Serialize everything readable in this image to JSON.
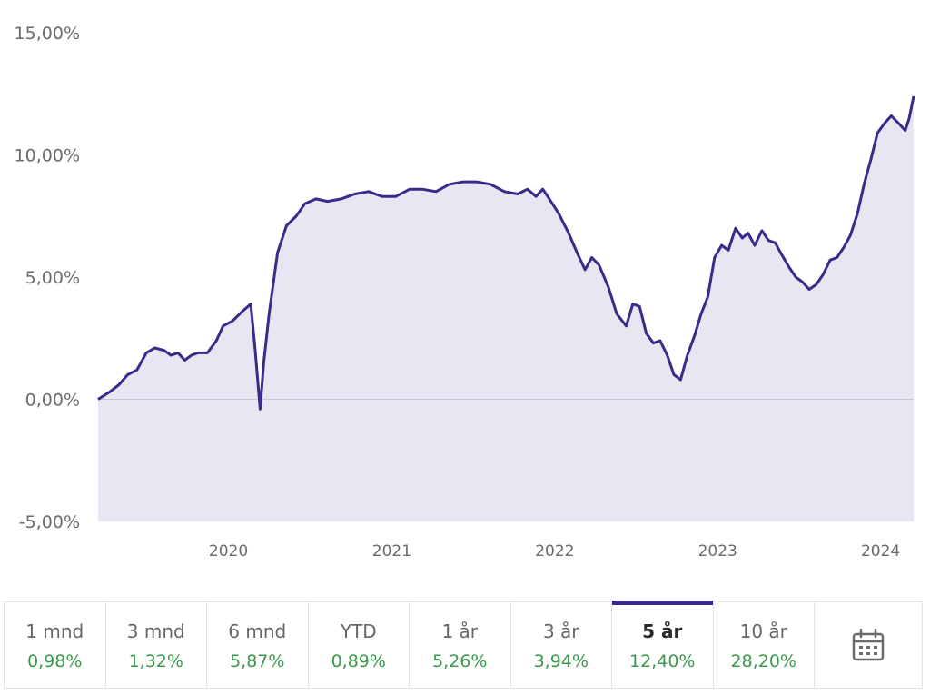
{
  "chart_data": {
    "type": "area",
    "title": "",
    "xlabel": "",
    "ylabel": "",
    "y_unit": "%",
    "ylim": [
      -5,
      15
    ],
    "yticks": [
      {
        "value": 15,
        "label": "15,00%"
      },
      {
        "value": 10,
        "label": "10,00%"
      },
      {
        "value": 5,
        "label": "5,00%"
      },
      {
        "value": 0,
        "label": "0,00%"
      },
      {
        "value": -5,
        "label": "-5,00%"
      }
    ],
    "xlim": [
      "2019-03-15",
      "2024-03-15"
    ],
    "xticks": [
      {
        "value": "2020-01-01",
        "label": "2020"
      },
      {
        "value": "2021-01-01",
        "label": "2021"
      },
      {
        "value": "2022-01-01",
        "label": "2022"
      },
      {
        "value": "2023-01-01",
        "label": "2023"
      },
      {
        "value": "2024-01-01",
        "label": "2024"
      }
    ],
    "grid": false,
    "zero_line": true,
    "line_color": "#3b2a8a",
    "fill_color": "#e9e5f3",
    "series": [
      {
        "name": "",
        "x": [
          "2019-03-15",
          "2019-04-10",
          "2019-05-01",
          "2019-05-20",
          "2019-06-10",
          "2019-07-01",
          "2019-07-20",
          "2019-08-10",
          "2019-08-25",
          "2019-09-10",
          "2019-09-25",
          "2019-10-10",
          "2019-10-25",
          "2019-11-15",
          "2019-12-05",
          "2019-12-20",
          "2020-01-10",
          "2020-02-01",
          "2020-02-20",
          "2020-03-01",
          "2020-03-12",
          "2020-03-20",
          "2020-04-01",
          "2020-04-20",
          "2020-05-10",
          "2020-06-01",
          "2020-06-20",
          "2020-07-15",
          "2020-08-10",
          "2020-09-10",
          "2020-10-10",
          "2020-11-10",
          "2020-12-10",
          "2021-01-10",
          "2021-02-10",
          "2021-03-10",
          "2021-04-10",
          "2021-05-10",
          "2021-06-10",
          "2021-07-10",
          "2021-08-10",
          "2021-09-10",
          "2021-10-10",
          "2021-11-01",
          "2021-11-20",
          "2021-12-05",
          "2021-12-20",
          "2022-01-10",
          "2022-02-01",
          "2022-02-20",
          "2022-03-10",
          "2022-03-25",
          "2022-04-10",
          "2022-05-01",
          "2022-05-20",
          "2022-06-10",
          "2022-06-25",
          "2022-07-10",
          "2022-07-25",
          "2022-08-10",
          "2022-08-25",
          "2022-09-10",
          "2022-09-25",
          "2022-10-10",
          "2022-10-25",
          "2022-11-10",
          "2022-11-25",
          "2022-12-10",
          "2022-12-25",
          "2023-01-10",
          "2023-01-25",
          "2023-02-10",
          "2023-02-25",
          "2023-03-10",
          "2023-03-25",
          "2023-04-10",
          "2023-04-25",
          "2023-05-10",
          "2023-05-25",
          "2023-06-10",
          "2023-06-25",
          "2023-07-10",
          "2023-07-25",
          "2023-08-10",
          "2023-08-25",
          "2023-09-10",
          "2023-09-25",
          "2023-10-10",
          "2023-10-25",
          "2023-11-10",
          "2023-11-25",
          "2023-12-10",
          "2023-12-25",
          "2024-01-10",
          "2024-01-25",
          "2024-02-10",
          "2024-02-25",
          "2024-03-05",
          "2024-03-15"
        ],
        "y": [
          0,
          0.3,
          0.6,
          1.0,
          1.2,
          1.9,
          2.1,
          2.0,
          1.8,
          1.9,
          1.6,
          1.8,
          1.9,
          1.9,
          2.4,
          3.0,
          3.2,
          3.6,
          3.9,
          2.0,
          -0.4,
          1.5,
          3.5,
          6.0,
          7.1,
          7.5,
          8.0,
          8.2,
          8.1,
          8.2,
          8.4,
          8.5,
          8.3,
          8.3,
          8.6,
          8.6,
          8.5,
          8.8,
          8.9,
          8.9,
          8.8,
          8.5,
          8.4,
          8.6,
          8.3,
          8.6,
          8.2,
          7.6,
          6.8,
          6.0,
          5.3,
          5.8,
          5.5,
          4.6,
          3.5,
          3.0,
          3.9,
          3.8,
          2.7,
          2.3,
          2.4,
          1.8,
          1.0,
          0.8,
          1.8,
          2.6,
          3.5,
          4.2,
          5.8,
          6.3,
          6.1,
          7.0,
          6.6,
          6.8,
          6.3,
          6.9,
          6.5,
          6.4,
          5.9,
          5.4,
          5.0,
          4.8,
          4.5,
          4.7,
          5.1,
          5.7,
          5.8,
          6.2,
          6.7,
          7.6,
          8.8,
          9.8,
          10.9,
          11.3,
          11.6,
          11.3,
          11.0,
          11.5,
          12.4
        ]
      }
    ]
  },
  "periods": [
    {
      "label": "1 mnd",
      "value": "0,98%",
      "active": false
    },
    {
      "label": "3 mnd",
      "value": "1,32%",
      "active": false
    },
    {
      "label": "6 mnd",
      "value": "5,87%",
      "active": false
    },
    {
      "label": "YTD",
      "value": "0,89%",
      "active": false
    },
    {
      "label": "1 år",
      "value": "5,26%",
      "active": false
    },
    {
      "label": "3 år",
      "value": "3,94%",
      "active": false
    },
    {
      "label": "5 år",
      "value": "12,40%",
      "active": true
    },
    {
      "label": "10 år",
      "value": "28,20%",
      "active": false
    }
  ],
  "positive_color": "#3a9a4a",
  "calendar_icon": "calendar-icon"
}
